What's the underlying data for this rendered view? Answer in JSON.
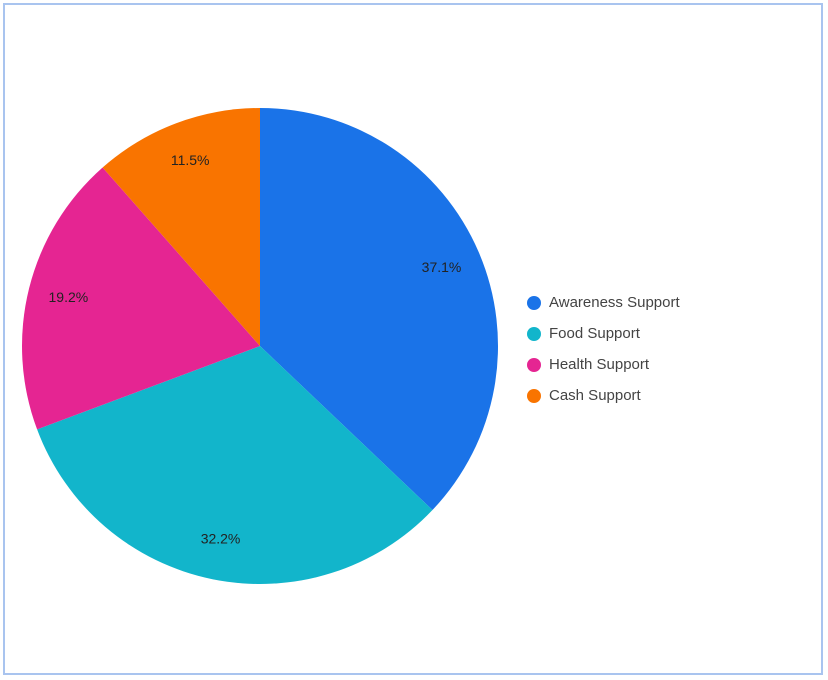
{
  "chart_data": {
    "type": "pie",
    "categories": [
      "Awareness Support",
      "Food Support",
      "Health Support",
      "Cash Support"
    ],
    "values": [
      37.1,
      32.2,
      19.2,
      11.5
    ],
    "value_labels": [
      "37.1%",
      "32.2%",
      "19.2%",
      "11.5%"
    ],
    "colors": [
      "#1a73e8",
      "#12b5cb",
      "#e52592",
      "#f97400"
    ],
    "title": "",
    "legend_position": "right"
  }
}
